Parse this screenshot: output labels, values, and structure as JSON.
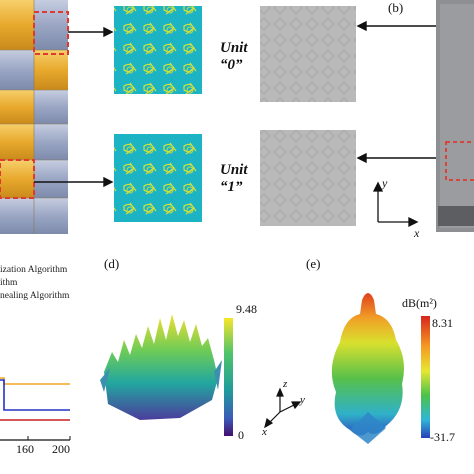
{
  "panels": {
    "b": "(b)",
    "d": "(d)",
    "e": "(e)"
  },
  "units": [
    {
      "name": "Unit",
      "code": "“0”"
    },
    {
      "name": "Unit",
      "code": "“1”"
    }
  ],
  "axes_a": {
    "y": "y",
    "x": "x"
  },
  "axes_d": {
    "z": "z",
    "y": "y",
    "x": "x"
  },
  "legend_c": [
    "ization Algorithm",
    "ithm",
    "nealing Algorithm"
  ],
  "chart_c": {
    "xticks": [
      "160",
      "200"
    ]
  },
  "colorbar_d": {
    "max": "9.48",
    "min": "0"
  },
  "colorbar_e": {
    "unit": "dB(m²)",
    "max": "8.31",
    "min": "-31.7"
  },
  "colors": {
    "gold": "#e8b23c",
    "steel": "#9aa6c4",
    "teal": "#1fb3c2",
    "highlight": "#e03a2f"
  }
}
